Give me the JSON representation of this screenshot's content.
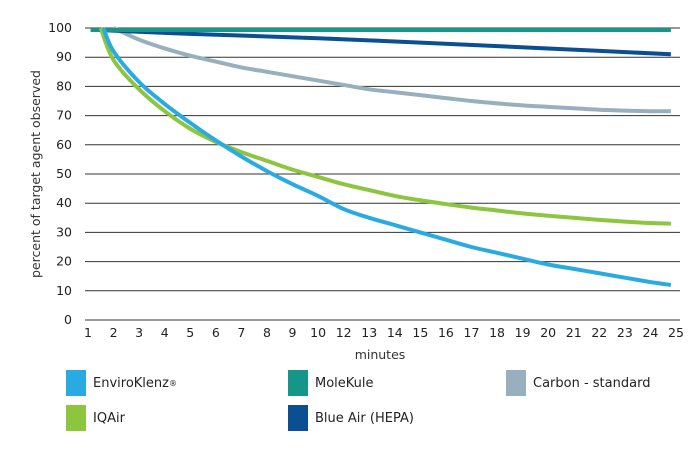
{
  "chart_data": {
    "type": "line",
    "title": "",
    "xlabel": "minutes",
    "ylabel": "percent of target agent observed",
    "ylim": [
      0,
      100
    ],
    "yticks": [
      0,
      10,
      20,
      30,
      40,
      50,
      60,
      70,
      80,
      90,
      100
    ],
    "xticks": [
      "1",
      "2",
      "3",
      "4",
      "5",
      "6",
      "7",
      "8",
      "9",
      "10",
      "12",
      "13",
      "14",
      "15",
      "16",
      "17",
      "18",
      "19",
      "20",
      "21",
      "22",
      "23",
      "24",
      "25"
    ],
    "grid": "horizontal",
    "legend_position": "bottom",
    "series": [
      {
        "name": "EnviroKlenz",
        "mark": "®",
        "color": "#29abe2",
        "x": [
          1.6,
          2,
          3,
          4,
          5,
          6,
          7,
          8,
          9,
          10,
          12,
          13,
          14,
          15,
          16,
          17,
          18,
          19,
          20,
          21,
          22,
          23,
          24,
          24.8
        ],
        "y": [
          100,
          92,
          81.5,
          74,
          67.5,
          61.5,
          56,
          51,
          46.5,
          42.5,
          38,
          35,
          32.5,
          30,
          27.5,
          25,
          23,
          21,
          19,
          17.5,
          16,
          14.5,
          13,
          12
        ]
      },
      {
        "name": "MoleKule",
        "color": "#16968a",
        "x": [
          1.1,
          24.8
        ],
        "y": [
          99.3,
          99.3
        ]
      },
      {
        "name": "Carbon - standard",
        "color": "#98afbe",
        "x": [
          2,
          3,
          4,
          5,
          6,
          7,
          8,
          9,
          10,
          12,
          13,
          14,
          15,
          16,
          17,
          18,
          19,
          20,
          21,
          22,
          23,
          24,
          24.8
        ],
        "y": [
          100,
          96,
          93,
          90.5,
          88.5,
          86.5,
          85,
          83.5,
          82,
          80.5,
          79,
          78,
          77,
          76,
          75,
          74.2,
          73.5,
          73,
          72.5,
          72,
          71.7,
          71.5,
          71.5
        ]
      },
      {
        "name": "IQAir",
        "color": "#8cc63f",
        "x": [
          1.5,
          2,
          3,
          4,
          5,
          6,
          7,
          8,
          9,
          10,
          12,
          13,
          14,
          15,
          16,
          17,
          18,
          19,
          20,
          21,
          22,
          23,
          24,
          24.8
        ],
        "y": [
          100,
          89,
          79,
          71.5,
          65.5,
          61,
          57.5,
          54.5,
          51.5,
          49,
          46.5,
          44.5,
          42.5,
          41,
          39.7,
          38.5,
          37.5,
          36.5,
          35.7,
          35,
          34.3,
          33.7,
          33.2,
          33
        ]
      },
      {
        "name": "Blue Air (HEPA)",
        "color": "#0b4f92",
        "x": [
          1.4,
          5,
          10,
          15,
          20,
          24.8
        ],
        "y": [
          99.3,
          98,
          96.5,
          95,
          93,
          91
        ]
      }
    ]
  },
  "legend": {
    "items": [
      {
        "label": "EnviroKlenz",
        "sup": "®"
      },
      {
        "label": "MoleKule"
      },
      {
        "label": "Carbon - standard"
      },
      {
        "label": "IQAir"
      },
      {
        "label": "Blue Air (HEPA)"
      }
    ]
  }
}
